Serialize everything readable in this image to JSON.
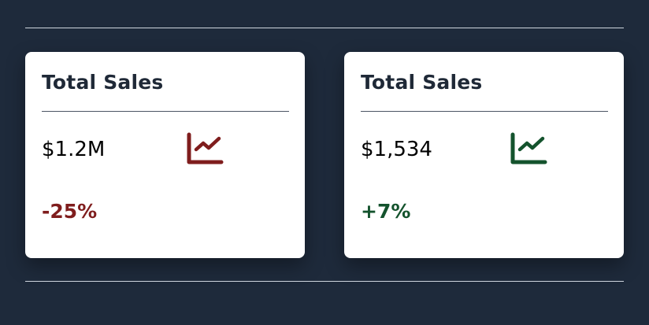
{
  "colors": {
    "background": "#1e2a3b",
    "card": "#ffffff",
    "negative": "#7f1d1d",
    "positive": "#14532d"
  },
  "cards": [
    {
      "title": "Total Sales",
      "value": "$1.2M",
      "change": "-25%",
      "trend": "negative",
      "icon": "line-chart-icon"
    },
    {
      "title": "Total Sales",
      "value": "$1,534",
      "change": "+7%",
      "trend": "positive",
      "icon": "line-chart-icon"
    }
  ]
}
